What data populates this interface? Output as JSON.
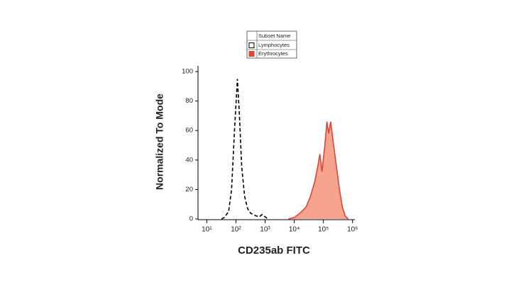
{
  "chart_data": {
    "type": "histogram-overlay",
    "legend_title": "Subset Name",
    "xlabel": "CD235ab FITC",
    "ylabel": "Normalized To Mode",
    "xscale": "log",
    "xlim": [
      5,
      1200000
    ],
    "xticks": [
      {
        "value": 10,
        "label": "10¹"
      },
      {
        "value": 100,
        "label": "10²"
      },
      {
        "value": 1000,
        "label": "10³"
      },
      {
        "value": 10000,
        "label": "10⁴"
      },
      {
        "value": 100000,
        "label": "10⁵"
      },
      {
        "value": 1000000,
        "label": "10⁶"
      }
    ],
    "ylim": [
      0,
      100
    ],
    "yticks": [
      0,
      20,
      40,
      60,
      80,
      100
    ],
    "series": [
      {
        "name": "Lymphocytes",
        "color": "#000000",
        "dashed": true,
        "filled": false,
        "x": [
          32,
          40,
          56,
          71,
          89,
          112,
          132,
          158,
          200,
          251,
          316,
          398,
          501,
          631,
          794,
          1000,
          1259
        ],
        "values": [
          0,
          1,
          5,
          20,
          60,
          95,
          70,
          35,
          15,
          7,
          4,
          3,
          2,
          1.5,
          3,
          1.5,
          0
        ]
      },
      {
        "name": "Erythrocytes",
        "color": "#d9463b",
        "fill_color": "#f6a48e",
        "dashed": false,
        "filled": true,
        "x": [
          6310,
          10000,
          15850,
          25120,
          35480,
          50120,
          63100,
          75860,
          89130,
          112200,
          131800,
          151400,
          177800,
          223900,
          281800,
          354800,
          446700,
          562300,
          707900
        ],
        "values": [
          0,
          1,
          4,
          8,
          15,
          25,
          35,
          44,
          32,
          50,
          66,
          58,
          66,
          50,
          35,
          20,
          8,
          2,
          0
        ]
      }
    ]
  }
}
